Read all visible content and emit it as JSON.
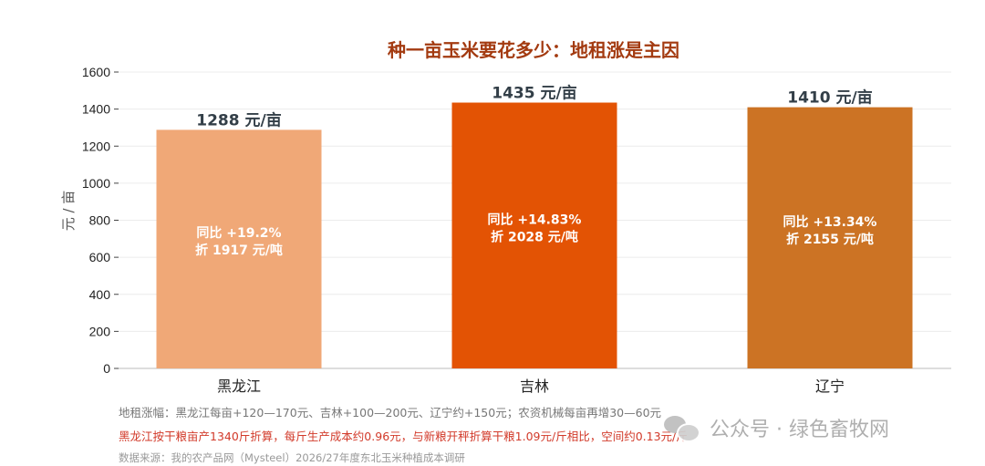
{
  "chart_data": {
    "type": "bar",
    "title": "种一亩玉米要花多少：地租涨是主因",
    "ylabel": "元 / 亩",
    "xlabel": "",
    "ylim": [
      0,
      1700
    ],
    "yticks": [
      0,
      200,
      400,
      600,
      800,
      1000,
      1200,
      1400,
      1600
    ],
    "grid": true,
    "categories": [
      "黑龙江",
      "吉林",
      "辽宁"
    ],
    "values": [
      1288,
      1435,
      1410
    ],
    "value_labels": [
      "1288 元/亩",
      "1435 元/亩",
      "1410 元/亩"
    ],
    "bar_colors": [
      "#f0a877",
      "#e35304",
      "#cc7324"
    ],
    "inner_labels": [
      [
        "同比 +19.2%",
        "折 1917 元/吨"
      ],
      [
        "同比 +14.83%",
        "折 2028 元/吨"
      ],
      [
        "同比 +13.34%",
        "折 2155 元/吨"
      ]
    ]
  },
  "notes": {
    "line1": "地租涨幅：黑龙江每亩+120—170元、吉林+100—200元、辽宁约+150元；农资机械每亩再增30—60元",
    "line2": "黑龙江按干粮亩产1340斤折算，每斤生产成本约0.96元，与新粮开秤折算干粮1.09元/斤相比，空间约0.13元/斤",
    "line3": "数据来源：我的农产品网（Mysteel）2026/27年度东北玉米种植成本调研"
  },
  "watermark": {
    "text": "公众号 · 绿色畜牧网",
    "icon": "wechat-icon"
  }
}
